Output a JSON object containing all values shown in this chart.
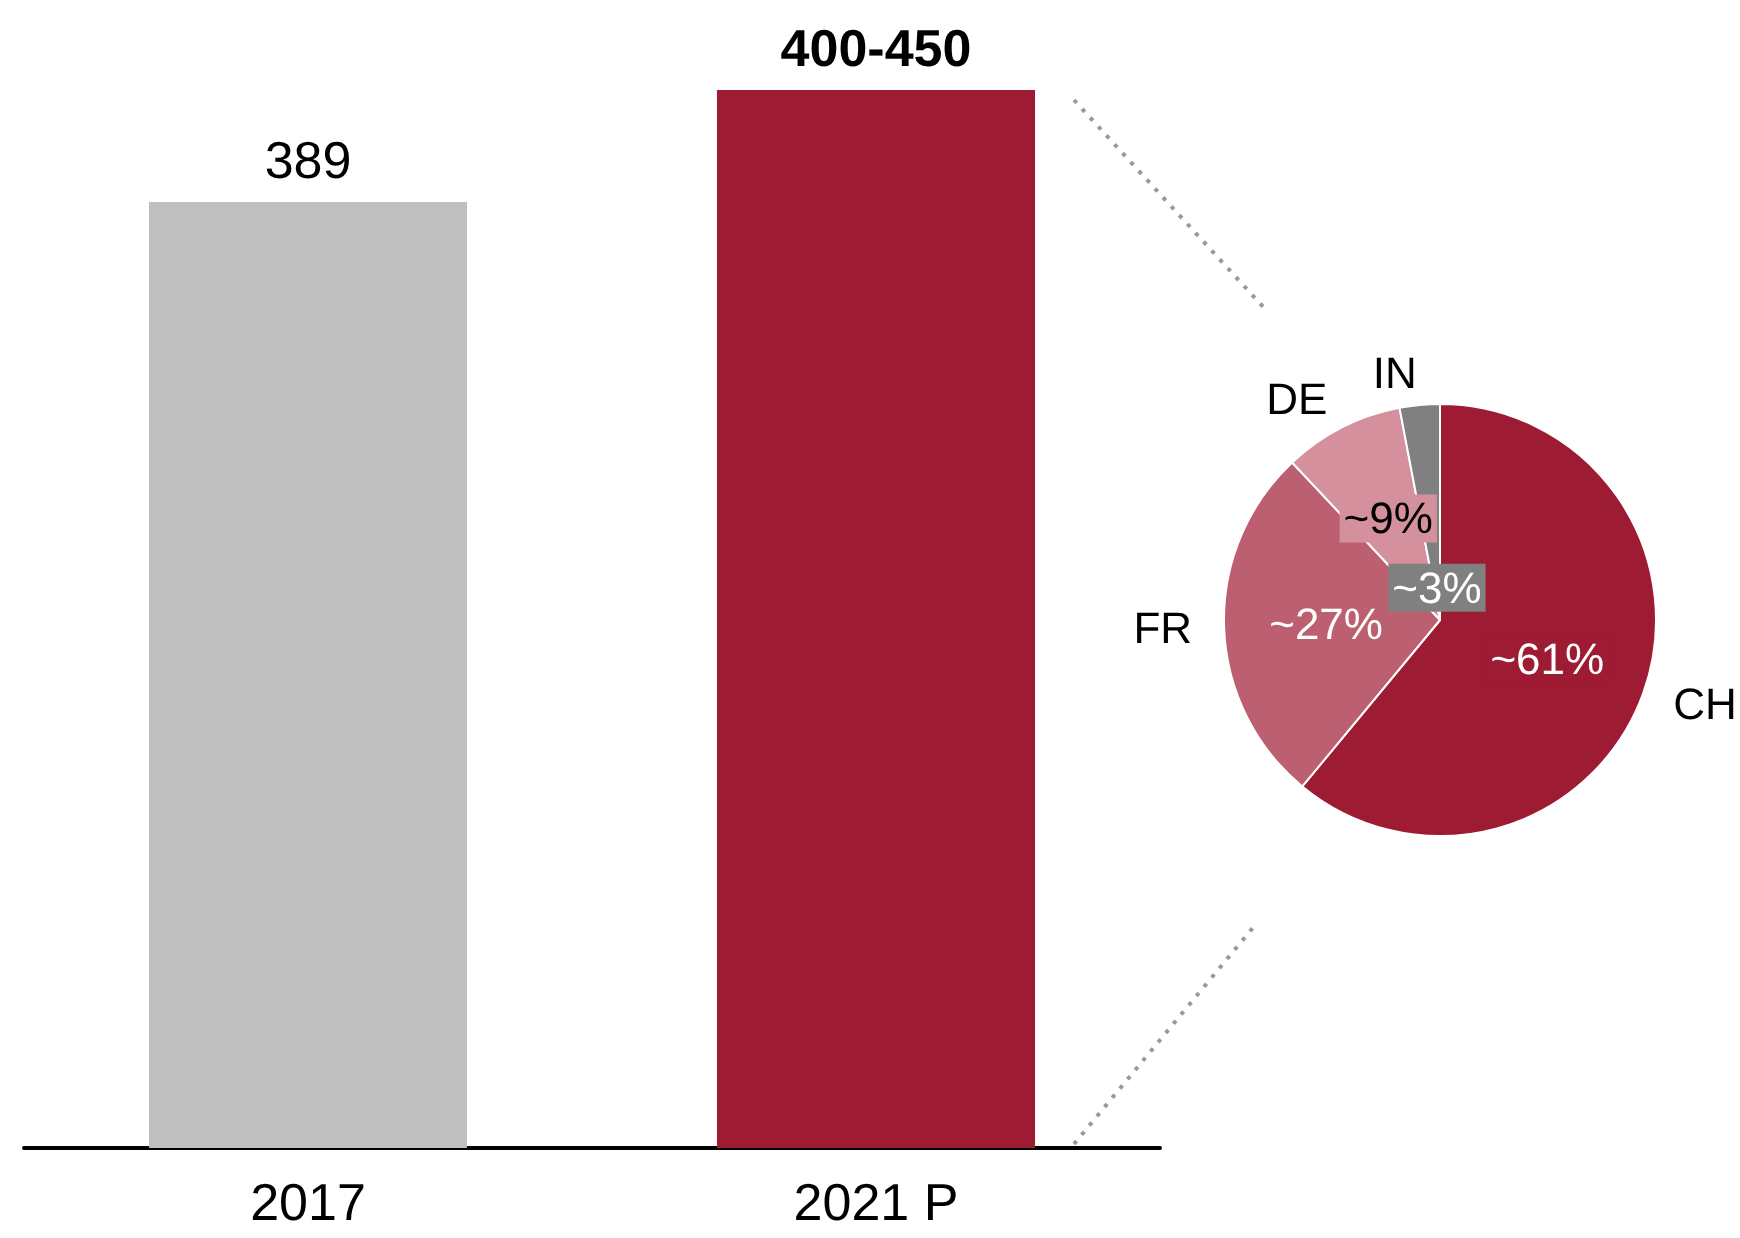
{
  "chart_data": [
    {
      "type": "bar",
      "categories": [
        "2017",
        "2021 P"
      ],
      "values": [
        389,
        435
      ],
      "colors": [
        "#bfbfbf",
        "#9e1b34"
      ],
      "value_labels": [
        "389",
        "400-450"
      ],
      "tick_labels": "x",
      "grid": false,
      "legend": false
    },
    {
      "type": "pie",
      "categories": [
        "CH",
        "FR",
        "DE",
        "IN"
      ],
      "values": [
        61,
        27,
        9,
        3
      ],
      "colors": [
        "#9e1b34",
        "#bc5f70",
        "#d4919d",
        "#808080"
      ],
      "value_labels": [
        "~61%",
        "~27%",
        "~9%",
        "~3%"
      ],
      "legend": false
    }
  ]
}
